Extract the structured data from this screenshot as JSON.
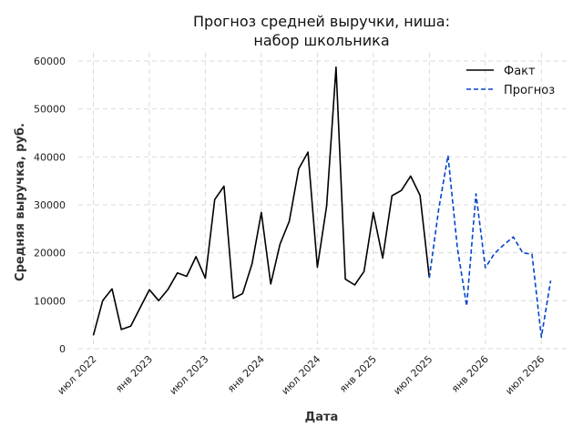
{
  "chart_data": {
    "type": "line",
    "title_lines": [
      "Прогноз средней выручки, ниша:",
      "набор школьника"
    ],
    "xlabel": "Дата",
    "ylabel": "Средняя выручка, руб.",
    "ylim": [
      0,
      60000
    ],
    "yticks": [
      0,
      10000,
      20000,
      30000,
      40000,
      50000,
      60000
    ],
    "xticks": [
      {
        "date": "2022-07",
        "label": "июл 2022"
      },
      {
        "date": "2023-01",
        "label": "янв 2023"
      },
      {
        "date": "2023-07",
        "label": "июл 2023"
      },
      {
        "date": "2024-01",
        "label": "янв 2024"
      },
      {
        "date": "2024-07",
        "label": "июл 2024"
      },
      {
        "date": "2025-01",
        "label": "янв 2025"
      },
      {
        "date": "2025-07",
        "label": "июл 2025"
      },
      {
        "date": "2026-01",
        "label": "янв 2026"
      },
      {
        "date": "2026-07",
        "label": "июл 2026"
      }
    ],
    "grid": true,
    "legend_position": "top-right",
    "series": [
      {
        "name": "Факт",
        "color": "#000000",
        "style": "solid",
        "x": [
          "2022-07",
          "2022-08",
          "2022-09",
          "2022-10",
          "2022-11",
          "2022-12",
          "2023-01",
          "2023-02",
          "2023-03",
          "2023-04",
          "2023-05",
          "2023-06",
          "2023-07",
          "2023-08",
          "2023-09",
          "2023-10",
          "2023-11",
          "2023-12",
          "2024-01",
          "2024-02",
          "2024-03",
          "2024-04",
          "2024-05",
          "2024-06",
          "2024-07",
          "2024-08",
          "2024-09",
          "2024-10",
          "2024-11",
          "2024-12",
          "2025-01",
          "2025-02",
          "2025-03",
          "2025-04",
          "2025-05",
          "2025-06",
          "2025-07"
        ],
        "y": [
          2800,
          10000,
          12500,
          4000,
          4700,
          8500,
          12300,
          10000,
          12400,
          15800,
          15100,
          19200,
          14700,
          31100,
          33900,
          10500,
          11500,
          17700,
          28400,
          13500,
          21800,
          26600,
          37500,
          41000,
          17000,
          29800,
          58700,
          14500,
          13300,
          16100,
          28400,
          18900,
          31900,
          33000,
          36000,
          32000,
          14800
        ]
      },
      {
        "name": "Прогноз",
        "color": "#0044cc",
        "style": "dashed",
        "x": [
          "2025-07",
          "2025-08",
          "2025-09",
          "2025-10",
          "2025-11",
          "2025-12",
          "2026-01",
          "2026-02",
          "2026-03",
          "2026-04",
          "2026-05",
          "2026-06",
          "2026-07",
          "2026-08"
        ],
        "y": [
          14800,
          29100,
          40300,
          21000,
          8900,
          32300,
          16900,
          19900,
          21700,
          23300,
          20000,
          19700,
          2400,
          14200
        ]
      }
    ]
  }
}
